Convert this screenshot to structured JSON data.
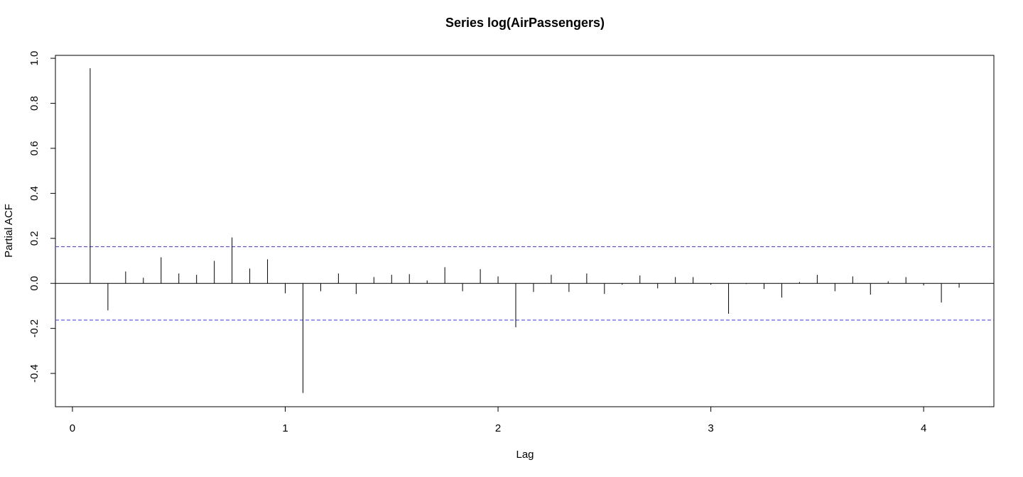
{
  "chart_data": {
    "type": "spike",
    "title": "Series  log(AirPassengers)",
    "x_label": "Lag",
    "y_label": "Partial ACF",
    "x": [
      0.0833,
      0.1667,
      0.25,
      0.3333,
      0.4167,
      0.5,
      0.5833,
      0.6667,
      0.75,
      0.8333,
      0.9167,
      1.0,
      1.0833,
      1.1667,
      1.25,
      1.3333,
      1.4167,
      1.5,
      1.5833,
      1.6667,
      1.75,
      1.8333,
      1.9167,
      2.0,
      2.0833,
      2.1667,
      2.25,
      2.3333,
      2.4167,
      2.5,
      2.5833,
      2.6667,
      2.75,
      2.8333,
      2.9167,
      3.0,
      3.0833,
      3.1667,
      3.25,
      3.3333,
      3.4167,
      3.5,
      3.5833,
      3.6667,
      3.75,
      3.8333,
      3.9167,
      4.0,
      4.0833,
      4.1667
    ],
    "values": [
      0.956,
      -0.12,
      0.053,
      0.025,
      0.116,
      0.044,
      0.038,
      0.1,
      0.204,
      0.066,
      0.107,
      -0.044,
      -0.487,
      -0.035,
      0.044,
      -0.047,
      0.028,
      0.038,
      0.041,
      0.013,
      0.072,
      -0.035,
      0.063,
      0.031,
      -0.195,
      -0.038,
      0.038,
      -0.038,
      0.044,
      -0.047,
      -0.006,
      0.035,
      -0.022,
      0.028,
      0.028,
      -0.006,
      -0.135,
      -0.003,
      -0.025,
      -0.063,
      0.006,
      0.038,
      -0.035,
      0.031,
      -0.05,
      0.009,
      0.028,
      -0.009,
      -0.085,
      -0.019
    ],
    "color": "#000000",
    "confidence_bounds": [
      -0.163,
      0.163
    ],
    "confidence_color": "#4d4dff",
    "xlim": [
      -0.08,
      4.33
    ],
    "ylim": [
      -0.548,
      1.013
    ],
    "xticks": [
      0,
      1,
      2,
      3,
      4
    ],
    "yticks": [
      -0.4,
      -0.2,
      {
        "value": 0,
        "label": "0.0"
      },
      0.2,
      0.4,
      0.6,
      0.8,
      {
        "value": 1,
        "label": "1.0"
      }
    ]
  }
}
